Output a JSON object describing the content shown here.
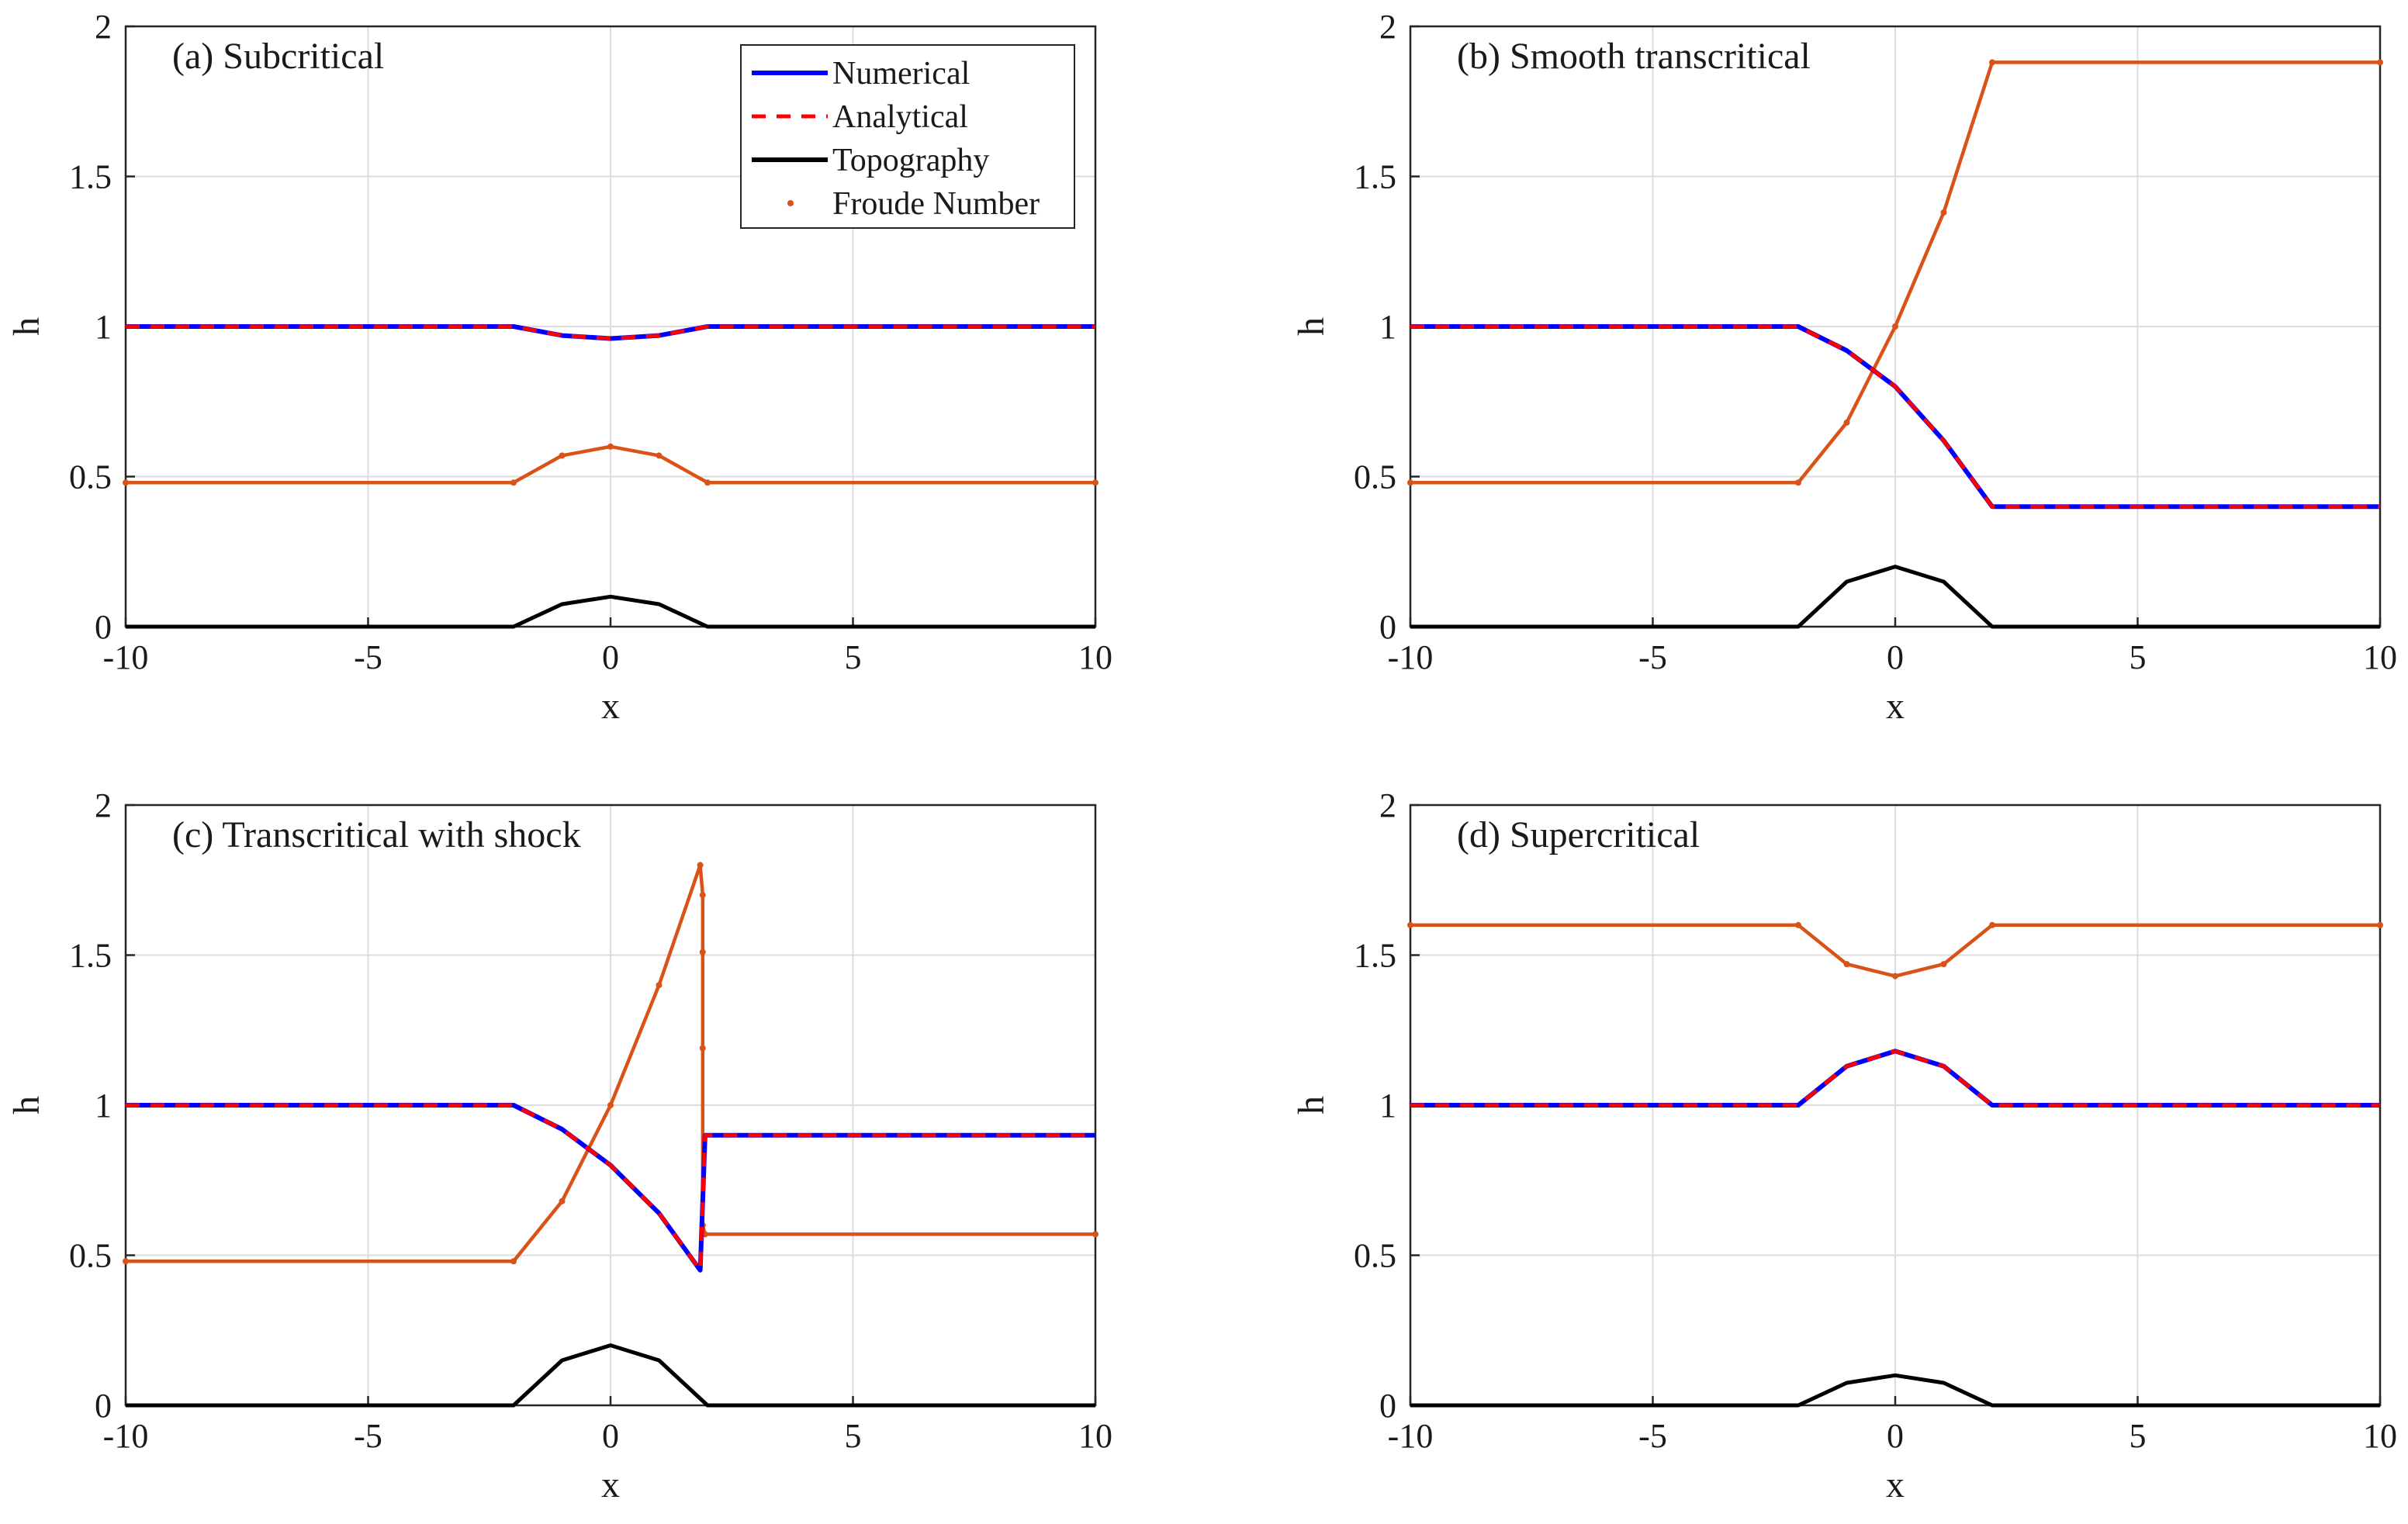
{
  "figure": {
    "type": "multi-panel line chart",
    "xlabel": "x",
    "ylabel": "h"
  },
  "legend": {
    "placement": "top-right of panel (a)",
    "entries": [
      {
        "label": "Numerical",
        "color": "#0000ff",
        "style": "solid"
      },
      {
        "label": "Analytical",
        "color": "#ff0000",
        "style": "dashed"
      },
      {
        "label": "Topography",
        "color": "#000000",
        "style": "solid"
      },
      {
        "label": "Froude Number",
        "color": "#d95319",
        "style": "dots"
      }
    ]
  },
  "chart_data": [
    {
      "type": "line",
      "title": "(a) Subcritical",
      "xlabel": "x",
      "ylabel": "h",
      "xlim": [
        -10,
        10
      ],
      "ylim": [
        0,
        2
      ],
      "xticks": [
        "-10",
        "-5",
        "0",
        "5",
        "10"
      ],
      "yticks": [
        "0",
        "0.5",
        "1",
        "1.5",
        "2"
      ],
      "grid": true,
      "series": [
        {
          "name": "Numerical",
          "x": [
            -10,
            -2,
            -1,
            0,
            1,
            2,
            10
          ],
          "y": [
            1.0,
            1.0,
            0.97,
            0.96,
            0.97,
            1.0,
            1.0
          ]
        },
        {
          "name": "Analytical",
          "x": [
            -10,
            -2,
            -1,
            0,
            1,
            2,
            10
          ],
          "y": [
            1.0,
            1.0,
            0.97,
            0.96,
            0.97,
            1.0,
            1.0
          ]
        },
        {
          "name": "Topography",
          "x": [
            -10,
            -2,
            -1,
            0,
            1,
            2,
            10
          ],
          "y": [
            0,
            0,
            0.075,
            0.1,
            0.075,
            0,
            0
          ]
        },
        {
          "name": "Froude Number",
          "x": [
            -10,
            -2,
            -1,
            0,
            1,
            2,
            10
          ],
          "y": [
            0.48,
            0.48,
            0.57,
            0.6,
            0.57,
            0.48,
            0.48
          ]
        }
      ]
    },
    {
      "type": "line",
      "title": "(b) Smooth transcritical",
      "xlabel": "x",
      "ylabel": "h",
      "xlim": [
        -10,
        10
      ],
      "ylim": [
        0,
        2
      ],
      "xticks": [
        "-10",
        "-5",
        "0",
        "5",
        "10"
      ],
      "yticks": [
        "0",
        "0.5",
        "1",
        "1.5",
        "2"
      ],
      "grid": true,
      "series": [
        {
          "name": "Numerical",
          "x": [
            -10,
            -2,
            -1,
            0,
            1,
            2,
            10
          ],
          "y": [
            1.0,
            1.0,
            0.92,
            0.8,
            0.62,
            0.4,
            0.4
          ]
        },
        {
          "name": "Analytical",
          "x": [
            -10,
            -2,
            -1,
            0,
            1,
            2,
            10
          ],
          "y": [
            1.0,
            1.0,
            0.92,
            0.8,
            0.62,
            0.4,
            0.4
          ]
        },
        {
          "name": "Topography",
          "x": [
            -10,
            -2,
            -1,
            0,
            1,
            2,
            10
          ],
          "y": [
            0,
            0,
            0.15,
            0.2,
            0.15,
            0,
            0
          ]
        },
        {
          "name": "Froude Number",
          "x": [
            -10,
            -2,
            -1,
            0,
            1,
            2,
            10
          ],
          "y": [
            0.48,
            0.48,
            0.68,
            1.0,
            1.38,
            1.88,
            1.88
          ]
        }
      ]
    },
    {
      "type": "line",
      "title": "(c) Transcritical with shock",
      "xlabel": "x",
      "ylabel": "h",
      "xlim": [
        -10,
        10
      ],
      "ylim": [
        0,
        2
      ],
      "xticks": [
        "-10",
        "-5",
        "0",
        "5",
        "10"
      ],
      "yticks": [
        "0",
        "0.5",
        "1",
        "1.5",
        "2"
      ],
      "grid": true,
      "series": [
        {
          "name": "Numerical",
          "x": [
            -10,
            -2,
            -1,
            0,
            1,
            1.85,
            1.85,
            1.95,
            10
          ],
          "y": [
            1.0,
            1.0,
            0.92,
            0.8,
            0.64,
            0.45,
            0.45,
            0.9,
            0.9
          ]
        },
        {
          "name": "Analytical",
          "x": [
            -10,
            -2,
            -1,
            0,
            1,
            1.85,
            1.85,
            1.95,
            10
          ],
          "y": [
            1.0,
            1.0,
            0.92,
            0.8,
            0.64,
            0.45,
            0.45,
            0.9,
            0.9
          ]
        },
        {
          "name": "Topography",
          "x": [
            -10,
            -2,
            -1,
            0,
            1,
            2,
            10
          ],
          "y": [
            0,
            0,
            0.15,
            0.2,
            0.15,
            0,
            0
          ]
        },
        {
          "name": "Froude Number",
          "x": [
            -10,
            -2,
            -1,
            0,
            1,
            1.85,
            1.9,
            1.9,
            1.9,
            1.9,
            1.95,
            10
          ],
          "y": [
            0.48,
            0.48,
            0.68,
            1.0,
            1.4,
            1.8,
            1.7,
            1.51,
            1.19,
            0.6,
            0.57,
            0.57
          ]
        }
      ]
    },
    {
      "type": "line",
      "title": "(d) Supercritical",
      "xlabel": "x",
      "ylabel": "h",
      "xlim": [
        -10,
        10
      ],
      "ylim": [
        0,
        2
      ],
      "xticks": [
        "-10",
        "-5",
        "0",
        "5",
        "10"
      ],
      "yticks": [
        "0",
        "0.5",
        "1",
        "1.5",
        "2"
      ],
      "grid": true,
      "series": [
        {
          "name": "Numerical",
          "x": [
            -10,
            -2,
            -1,
            0,
            1,
            2,
            10
          ],
          "y": [
            1.0,
            1.0,
            1.13,
            1.18,
            1.13,
            1.0,
            1.0
          ]
        },
        {
          "name": "Analytical",
          "x": [
            -10,
            -2,
            -1,
            0,
            1,
            2,
            10
          ],
          "y": [
            1.0,
            1.0,
            1.13,
            1.18,
            1.13,
            1.0,
            1.0
          ]
        },
        {
          "name": "Topography",
          "x": [
            -10,
            -2,
            -1,
            0,
            1,
            2,
            10
          ],
          "y": [
            0,
            0,
            0.075,
            0.1,
            0.075,
            0,
            0
          ]
        },
        {
          "name": "Froude Number",
          "x": [
            -10,
            -2,
            -1,
            0,
            1,
            2,
            10
          ],
          "y": [
            1.6,
            1.6,
            1.47,
            1.43,
            1.47,
            1.6,
            1.6
          ]
        }
      ]
    }
  ]
}
